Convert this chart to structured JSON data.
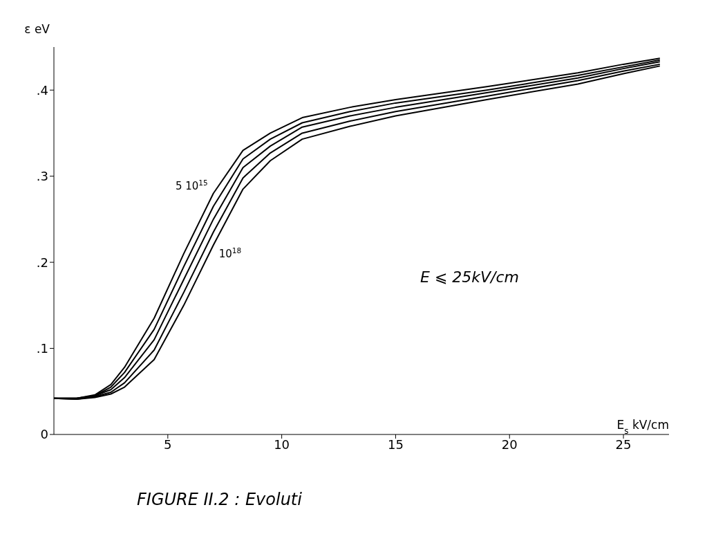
{
  "chart_data": {
    "type": "line",
    "xlabel": "E$_{s}$ kV/cm",
    "ylabel": "ε eV",
    "x": [
      0,
      1,
      1.8,
      2.5,
      3.1,
      4.4,
      5.7,
      7,
      8.3,
      9.5,
      10.9,
      13,
      15,
      19,
      23,
      25,
      26.6
    ],
    "series": [
      {
        "name": "5 10$^{15}$",
        "color": "#000000",
        "values": [
          0.042,
          0.042,
          0.046,
          0.058,
          0.078,
          0.135,
          0.21,
          0.28,
          0.33,
          0.35,
          0.368,
          0.38,
          0.389,
          0.404,
          0.42,
          0.43,
          0.437
        ]
      },
      {
        "color": "#000000",
        "values": [
          0.042,
          0.042,
          0.045,
          0.055,
          0.072,
          0.122,
          0.195,
          0.265,
          0.32,
          0.343,
          0.362,
          0.375,
          0.385,
          0.4,
          0.417,
          0.427,
          0.435
        ]
      },
      {
        "color": "#000000",
        "values": [
          0.042,
          0.042,
          0.045,
          0.052,
          0.066,
          0.11,
          0.18,
          0.25,
          0.31,
          0.335,
          0.357,
          0.37,
          0.38,
          0.397,
          0.414,
          0.425,
          0.433
        ]
      },
      {
        "color": "#000000",
        "values": [
          0.042,
          0.041,
          0.044,
          0.049,
          0.06,
          0.098,
          0.165,
          0.235,
          0.298,
          0.327,
          0.35,
          0.364,
          0.375,
          0.393,
          0.411,
          0.422,
          0.43
        ]
      },
      {
        "name": "10$^{18}$",
        "color": "#000000",
        "values": [
          0.042,
          0.041,
          0.043,
          0.047,
          0.055,
          0.087,
          0.15,
          0.22,
          0.285,
          0.318,
          0.343,
          0.358,
          0.37,
          0.389,
          0.407,
          0.419,
          0.428
        ]
      }
    ],
    "xlim": [
      0,
      27
    ],
    "xticks": [
      5,
      10,
      15,
      20,
      25
    ],
    "ylim": [
      0,
      0.45
    ],
    "yticks": [
      0,
      {
        "value": 0.1,
        "label": ".1"
      },
      {
        "value": 0.2,
        "label": ".2"
      },
      {
        "value": 0.3,
        "label": ".3"
      },
      {
        "value": 0.4,
        "label": ".4"
      }
    ],
    "annotations": [
      "E ⩽ 25kV/cm",
      "FIGURE II.2 : Evoluti"
    ],
    "grid": false,
    "legend": false,
    "marker": "none",
    "line_style": "solid"
  }
}
